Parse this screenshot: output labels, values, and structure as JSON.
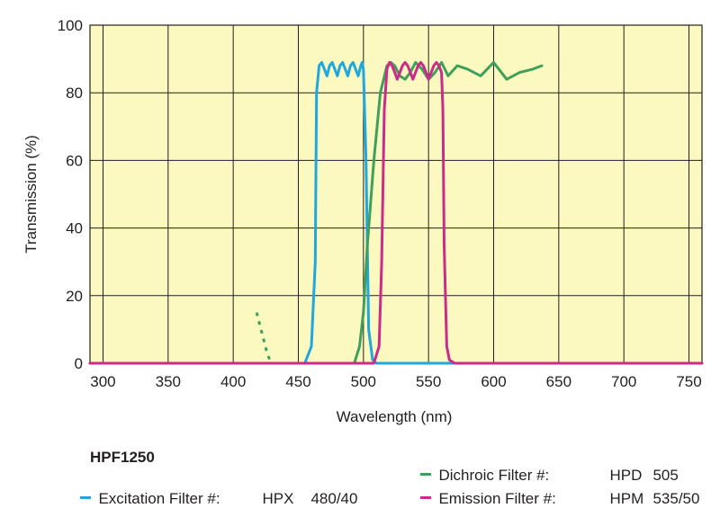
{
  "chart_data": {
    "type": "line",
    "xlabel": "Wavelength (nm)",
    "ylabel": "Transmission (%)",
    "xlim": [
      290,
      760
    ],
    "ylim": [
      0,
      100
    ],
    "x_ticks": [
      300,
      350,
      400,
      450,
      500,
      550,
      600,
      650,
      700,
      750
    ],
    "y_ticks": [
      0,
      20,
      40,
      60,
      80,
      100
    ],
    "grid": true,
    "background": "#fcf9c0",
    "grid_color": "#231f20",
    "series": [
      {
        "name": "Excitation Filter #:  HPX 480/40",
        "color": "#1fa8dd",
        "style": "solid",
        "x": [
          290,
          455,
          460,
          463,
          464,
          466,
          468,
          470,
          472,
          474,
          476,
          478,
          480,
          482,
          484,
          486,
          488,
          490,
          492,
          494,
          496,
          498,
          499,
          500,
          502,
          504,
          507,
          510,
          760
        ],
        "y": [
          0,
          0,
          5,
          30,
          80,
          88,
          89,
          87,
          85,
          88,
          89,
          87,
          85,
          88,
          89,
          87,
          85,
          88,
          89,
          87,
          85,
          88,
          89,
          87,
          60,
          10,
          1,
          0,
          0
        ]
      },
      {
        "name": "Dichroic Filter #:  HPD 505",
        "color": "#3ea05a",
        "style": "solid",
        "x": [
          290,
          493,
          497,
          500,
          503,
          508,
          513,
          518,
          521,
          524,
          528,
          532,
          536,
          540,
          545,
          550,
          555,
          560,
          565,
          572,
          580,
          590,
          600,
          610,
          620,
          630,
          637
        ],
        "y": [
          0,
          0,
          5,
          15,
          35,
          60,
          80,
          88,
          89,
          88,
          85,
          84,
          86,
          89,
          87,
          84,
          86,
          89,
          85,
          88,
          87,
          85,
          89,
          84,
          86,
          87,
          88
        ]
      },
      {
        "name": "Dichroic Filter #:  HPD 505",
        "color": "#3ea05a",
        "style": "dashed",
        "x": [
          418,
          420,
          422,
          424,
          426,
          428,
          430
        ],
        "y": [
          15,
          12,
          9,
          6,
          3,
          1,
          0
        ]
      },
      {
        "name": "Emission Filter #:  HPM 535/50",
        "color": "#cb2b8a",
        "style": "solid",
        "x": [
          290,
          508,
          512,
          514,
          516,
          518,
          520,
          522,
          524,
          526,
          528,
          530,
          532,
          534,
          536,
          538,
          540,
          542,
          544,
          546,
          548,
          550,
          552,
          554,
          556,
          558,
          560,
          561,
          562,
          564,
          566,
          570,
          760
        ],
        "y": [
          0,
          0,
          5,
          30,
          75,
          87,
          89,
          88,
          86,
          84,
          86,
          88,
          89,
          88,
          86,
          84,
          86,
          88,
          89,
          88,
          86,
          84,
          86,
          88,
          89,
          88,
          86,
          75,
          35,
          5,
          1,
          0,
          0
        ]
      }
    ]
  },
  "legend": {
    "title": "HPF1250",
    "items": [
      {
        "label": "Excitation Filter #:",
        "code": "HPX",
        "value": "480/40",
        "color": "#1fa8dd"
      },
      {
        "label": "Dichroic Filter #:",
        "code": "HPD",
        "value": "505",
        "color": "#3ea05a"
      },
      {
        "label": "Emission Filter #:",
        "code": "HPM",
        "value": "535/50",
        "color": "#cb2b8a"
      }
    ]
  }
}
